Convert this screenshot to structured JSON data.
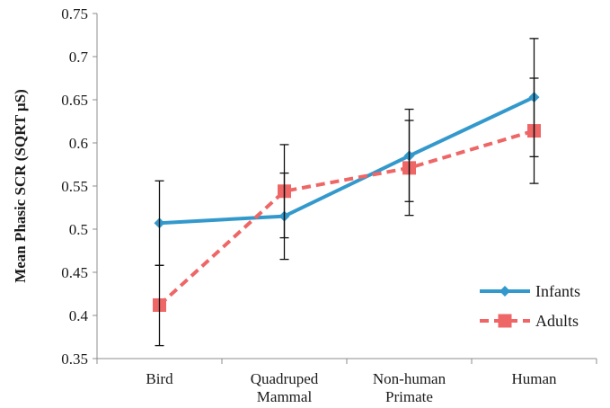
{
  "chart_data": {
    "type": "line",
    "title": "",
    "xlabel": "",
    "ylabel": "Mean Phasic SCR (SQRT μS)",
    "ylim": [
      0.35,
      0.75
    ],
    "yticks": [
      "0.35",
      "0.4",
      "0.45",
      "0.5",
      "0.55",
      "0.6",
      "0.65",
      "0.7",
      "0.75"
    ],
    "categories": [
      [
        "Bird"
      ],
      [
        "Quadruped",
        "Mammal"
      ],
      [
        "Non-human",
        "Primate"
      ],
      [
        "Human"
      ]
    ],
    "grid": false,
    "legend_position": "bottom-right",
    "series": [
      {
        "name": "Infants",
        "color": "#3399cc",
        "line_style": "solid",
        "marker": "diamond",
        "values": [
          0.507,
          0.515,
          0.585,
          0.653
        ],
        "error_low": [
          0.458,
          0.465,
          0.532,
          0.584
        ],
        "error_high": [
          0.556,
          0.565,
          0.639,
          0.721
        ]
      },
      {
        "name": "Adults",
        "color": "#ee6666",
        "line_style": "dashed",
        "marker": "square",
        "values": [
          0.412,
          0.544,
          0.571,
          0.614
        ],
        "error_low": [
          0.365,
          0.49,
          0.516,
          0.553
        ],
        "error_high": [
          0.458,
          0.598,
          0.626,
          0.675
        ]
      }
    ]
  }
}
